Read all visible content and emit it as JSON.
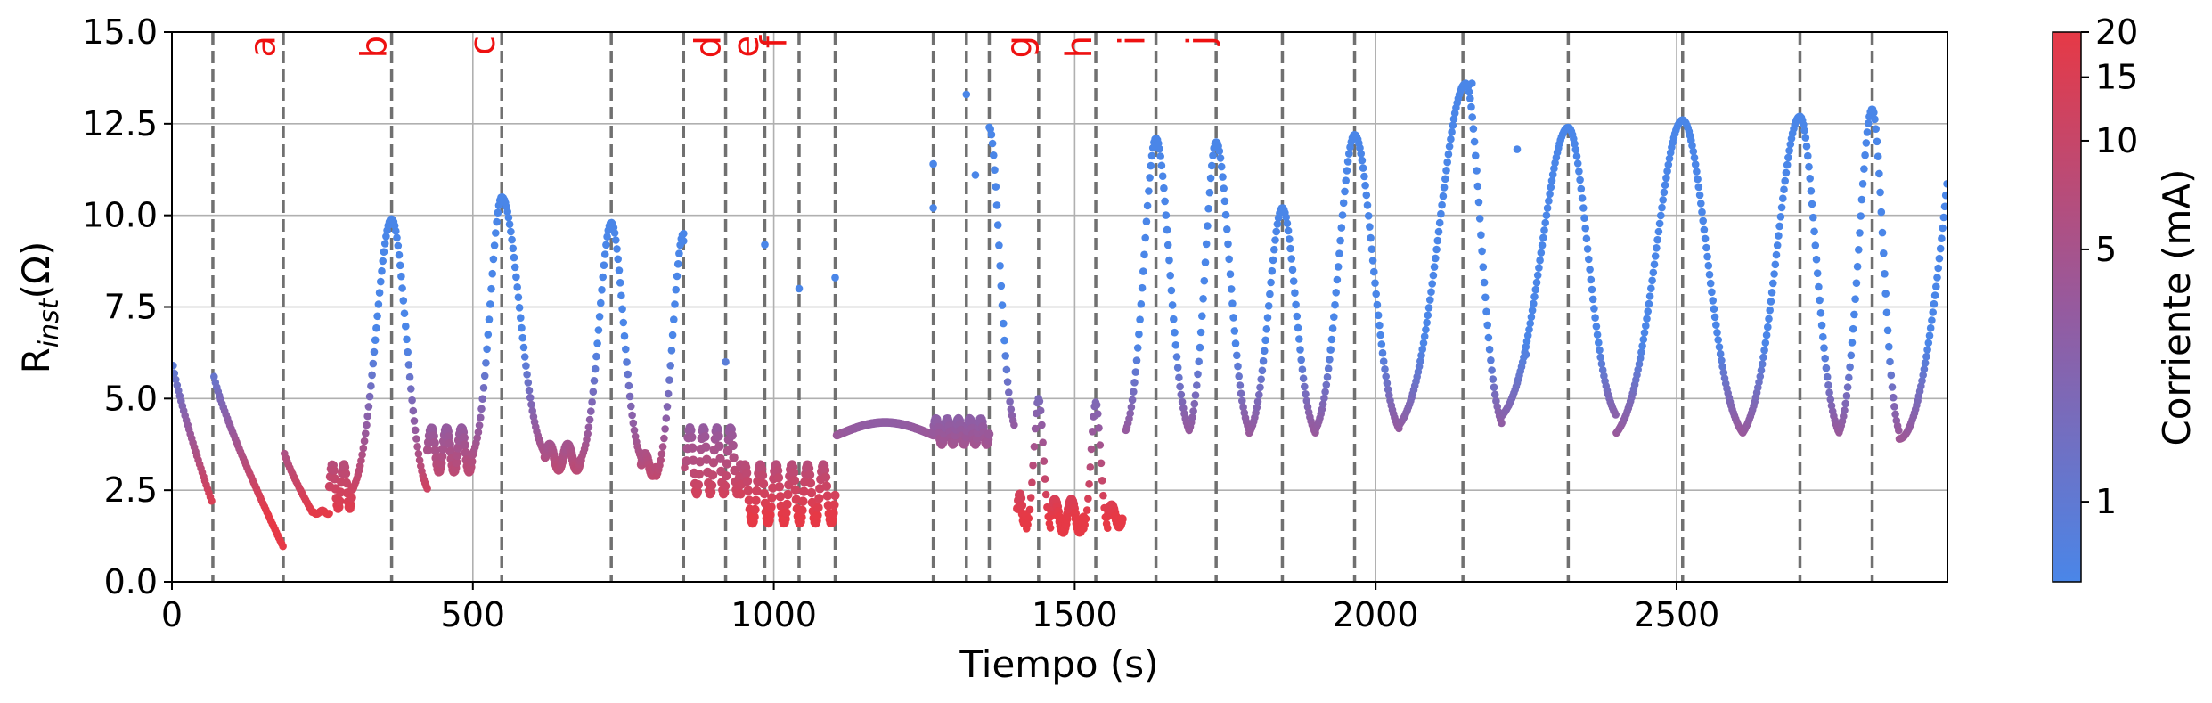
{
  "chart_data": {
    "type": "scatter",
    "title": "",
    "xlabel": "Tiempo (s)",
    "ylabel_main": "R",
    "ylabel_sub": "inst",
    "ylabel_unit": "(Ω)",
    "xlim": [
      0,
      2950
    ],
    "ylim": [
      0,
      15
    ],
    "xticks": [
      0,
      500,
      1000,
      1500,
      2000,
      2500
    ],
    "xtick_labels": [
      "0",
      "500",
      "1000",
      "1500",
      "2000",
      "2500"
    ],
    "yticks": [
      0,
      2.5,
      5,
      7.5,
      10,
      12.5,
      15
    ],
    "ytick_labels": [
      "0.0",
      "2.5",
      "5.0",
      "7.5",
      "10.0",
      "12.5",
      "15.0"
    ],
    "grid": true,
    "event_lines_x": [
      68,
      185,
      365,
      548,
      730,
      850,
      920,
      985,
      1042,
      1102,
      1265,
      1320,
      1358,
      1440,
      1535,
      1635,
      1735,
      1845,
      1965,
      2145,
      2320,
      2510,
      2705,
      2825
    ],
    "event_labels": [
      {
        "label": "a",
        "x": 150
      },
      {
        "label": "b",
        "x": 335
      },
      {
        "label": "c",
        "x": 515
      },
      {
        "label": "d",
        "x": 890
      },
      {
        "label": "e",
        "x": 953
      },
      {
        "label": "f",
        "x": 1000
      },
      {
        "label": "g",
        "x": 1407
      },
      {
        "label": "h",
        "x": 1507
      },
      {
        "label": "i",
        "x": 1595
      },
      {
        "label": "j",
        "x": 1708
      }
    ],
    "colorbar": {
      "label": "Corriente (mA)",
      "scale": "log",
      "range": [
        0.6,
        20
      ],
      "ticks": [
        1,
        5,
        10,
        15,
        20
      ],
      "tick_labels": [
        "1",
        "5",
        "10",
        "15",
        "20"
      ],
      "color_low": "#4a86e8",
      "color_high": "#e63946"
    },
    "segments": [
      {
        "type": "decay",
        "x0": 2,
        "x1": 68,
        "y0": 5.9,
        "y1": 2.1
      },
      {
        "type": "decay",
        "x0": 70,
        "x1": 185,
        "y0": 5.6,
        "y1": 0.95
      },
      {
        "type": "decay",
        "x0": 187,
        "x1": 235,
        "y0": 3.5,
        "y1": 1.85
      },
      {
        "type": "flat",
        "x0": 235,
        "x1": 262,
        "y": 1.9
      },
      {
        "type": "osc",
        "x0": 262,
        "x1": 300,
        "y": 2.6,
        "amp": 0.6,
        "cycles": 2
      },
      {
        "type": "peak",
        "x0": 300,
        "xp": 365,
        "x1": 425,
        "base": 2.2,
        "peak": 9.9
      },
      {
        "type": "osc",
        "x0": 425,
        "x1": 500,
        "y": 3.6,
        "amp": 0.6,
        "cycles": 3
      },
      {
        "type": "peak",
        "x0": 500,
        "xp": 548,
        "x1": 620,
        "base": 3.2,
        "peak": 10.5
      },
      {
        "type": "osc",
        "x0": 620,
        "x1": 680,
        "y": 3.4,
        "amp": 0.35,
        "cycles": 2
      },
      {
        "type": "peak",
        "x0": 680,
        "xp": 730,
        "x1": 780,
        "base": 3.1,
        "peak": 9.8
      },
      {
        "type": "osc",
        "x0": 780,
        "x1": 805,
        "y": 3.2,
        "amp": 0.3,
        "cycles": 1
      },
      {
        "type": "peak",
        "x0": 805,
        "xp": 850,
        "x1": 852,
        "base": 2.6,
        "peak": 9.5
      },
      {
        "type": "osc",
        "x0": 855,
        "x1": 945,
        "y": 3.3,
        "amp": 0.9,
        "cycles": 4
      },
      {
        "type": "osc",
        "x0": 945,
        "x1": 1102,
        "y": 2.4,
        "amp": 0.8,
        "cycles": 6
      },
      {
        "type": "wave",
        "x0": 1105,
        "x1": 1265,
        "y": 4.0,
        "amp": 0.35
      },
      {
        "type": "osc",
        "x0": 1265,
        "x1": 1358,
        "y": 4.1,
        "amp": 0.35,
        "cycles": 5
      },
      {
        "type": "peak",
        "x0": 1358,
        "xp": 1358,
        "x1": 1400,
        "base": 3.9,
        "peak": 12.4
      },
      {
        "type": "osc",
        "x0": 1405,
        "x1": 1420,
        "y": 2.0,
        "amp": 0.4,
        "cycles": 1
      },
      {
        "type": "peak",
        "x0": 1420,
        "xp": 1440,
        "x1": 1460,
        "base": 1.3,
        "peak": 5.0
      },
      {
        "type": "osc",
        "x0": 1460,
        "x1": 1515,
        "y": 1.8,
        "amp": 0.45,
        "cycles": 2
      },
      {
        "type": "peak",
        "x0": 1515,
        "xp": 1535,
        "x1": 1555,
        "base": 1.3,
        "peak": 4.9
      },
      {
        "type": "osc",
        "x0": 1555,
        "x1": 1580,
        "y": 1.8,
        "amp": 0.3,
        "cycles": 1
      },
      {
        "type": "peak",
        "x0": 1585,
        "xp": 1635,
        "x1": 1690,
        "base": 3.8,
        "peak": 12.1
      },
      {
        "type": "peak",
        "x0": 1690,
        "xp": 1735,
        "x1": 1790,
        "base": 3.8,
        "peak": 12.0
      },
      {
        "type": "peak",
        "x0": 1790,
        "xp": 1845,
        "x1": 1900,
        "base": 3.8,
        "peak": 10.2
      },
      {
        "type": "peak",
        "x0": 1900,
        "xp": 1965,
        "x1": 2040,
        "base": 3.8,
        "peak": 12.2
      },
      {
        "type": "peak",
        "x0": 2040,
        "xp": 2150,
        "x1": 2210,
        "base": 3.9,
        "peak": 13.6
      },
      {
        "type": "peak",
        "x0": 2210,
        "xp": 2320,
        "x1": 2400,
        "base": 4.2,
        "peak": 12.4
      },
      {
        "type": "peak",
        "x0": 2400,
        "xp": 2510,
        "x1": 2610,
        "base": 3.7,
        "peak": 12.6
      },
      {
        "type": "peak",
        "x0": 2610,
        "xp": 2705,
        "x1": 2770,
        "base": 3.7,
        "peak": 12.7
      },
      {
        "type": "peak",
        "x0": 2770,
        "xp": 2825,
        "x1": 2870,
        "base": 3.7,
        "peak": 12.9
      },
      {
        "type": "rise",
        "x0": 2870,
        "x1": 2950,
        "y0": 3.9,
        "y1": 11.0
      }
    ],
    "outliers": [
      {
        "x": 850,
        "y": 9.3
      },
      {
        "x": 920,
        "y": 6.0
      },
      {
        "x": 985,
        "y": 9.2
      },
      {
        "x": 1042,
        "y": 8.0
      },
      {
        "x": 1102,
        "y": 8.3
      },
      {
        "x": 1265,
        "y": 11.4
      },
      {
        "x": 1265,
        "y": 10.2
      },
      {
        "x": 1320,
        "y": 13.3
      },
      {
        "x": 1335,
        "y": 11.1
      },
      {
        "x": 2160,
        "y": 13.6
      },
      {
        "x": 2235,
        "y": 11.8
      },
      {
        "x": 2250,
        "y": 6.2
      }
    ]
  }
}
